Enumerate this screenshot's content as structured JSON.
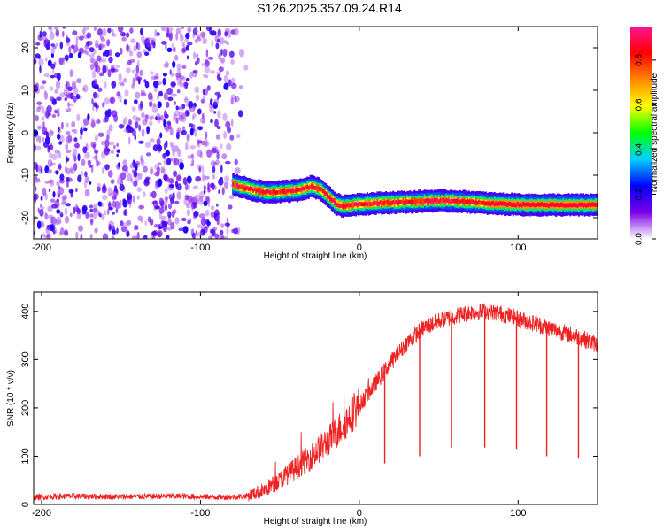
{
  "title": "S126.2025.357.09.24.R14",
  "colors": {
    "snr_line": "#ee2222",
    "axis": "#000000"
  },
  "chart_data": [
    {
      "type": "heatmap",
      "xlabel": "Height of straight line (km)",
      "ylabel": "Frequency (Hz)",
      "xlim": [
        -205,
        150
      ],
      "ylim": [
        -25,
        25
      ],
      "xticks": [
        -200,
        -100,
        0,
        100
      ],
      "yticks": [
        -20,
        -10,
        0,
        10,
        20
      ],
      "grid": false,
      "noise_region_x": [
        -205,
        -70
      ],
      "signal_trace": {
        "x": [
          -80,
          -70,
          -60,
          -50,
          -40,
          -30,
          -25,
          -20,
          -15,
          -10,
          -5,
          0,
          10,
          20,
          30,
          40,
          50,
          60,
          70,
          80,
          90,
          100,
          110,
          120,
          130,
          140,
          150
        ],
        "y": [
          -12.2,
          -13.2,
          -14.0,
          -13.9,
          -13.6,
          -12.6,
          -13.3,
          -15.0,
          -16.8,
          -17.3,
          -17.0,
          -16.8,
          -16.6,
          -16.4,
          -16.3,
          -16.1,
          -16.0,
          -16.1,
          -16.3,
          -16.6,
          -16.8,
          -16.9,
          -17.0,
          -17.0,
          -17.0,
          -17.0,
          -17.0
        ]
      },
      "colorbar": {
        "label": "Normalized spectral amplitude",
        "range": [
          0.0,
          0.95
        ],
        "ticks": [
          "0.0",
          "0.2",
          "0.4",
          "0.6",
          "0.8"
        ],
        "tick_values": [
          0.0,
          0.2,
          0.4,
          0.6,
          0.8
        ],
        "colormap": [
          "#ffffff",
          "#7a00e6",
          "#0000ff",
          "#00d0ff",
          "#00ff00",
          "#ffff00",
          "#ff8800",
          "#ff0000",
          "#ff1493"
        ]
      }
    },
    {
      "type": "line",
      "xlabel": "Height of straight line (km)",
      "ylabel": "SNR (10 * v/v)",
      "xlim": [
        -205,
        150
      ],
      "ylim": [
        0,
        440
      ],
      "xticks": [
        -200,
        -100,
        0,
        100
      ],
      "yticks": [
        0,
        100,
        200,
        300,
        400
      ],
      "grid": false,
      "series": [
        {
          "x": [
            -205,
            -180,
            -150,
            -120,
            -100,
            -80,
            -70,
            -60,
            -50,
            -40,
            -30,
            -20,
            -10,
            0,
            10,
            20,
            30,
            40,
            50,
            60,
            70,
            80,
            90,
            100,
            110,
            120,
            130,
            140,
            150
          ],
          "values": [
            15,
            17,
            16,
            17,
            16,
            15,
            18,
            30,
            50,
            75,
            100,
            130,
            165,
            205,
            250,
            295,
            335,
            365,
            380,
            390,
            398,
            400,
            395,
            385,
            375,
            365,
            355,
            345,
            330
          ]
        }
      ],
      "dips": [
        {
          "x": 16,
          "y": 85
        },
        {
          "x": 38,
          "y": 100
        },
        {
          "x": 58,
          "y": 118
        },
        {
          "x": 79,
          "y": 118
        },
        {
          "x": 99,
          "y": 115
        },
        {
          "x": 118,
          "y": 100
        },
        {
          "x": 138,
          "y": 95
        }
      ]
    }
  ]
}
